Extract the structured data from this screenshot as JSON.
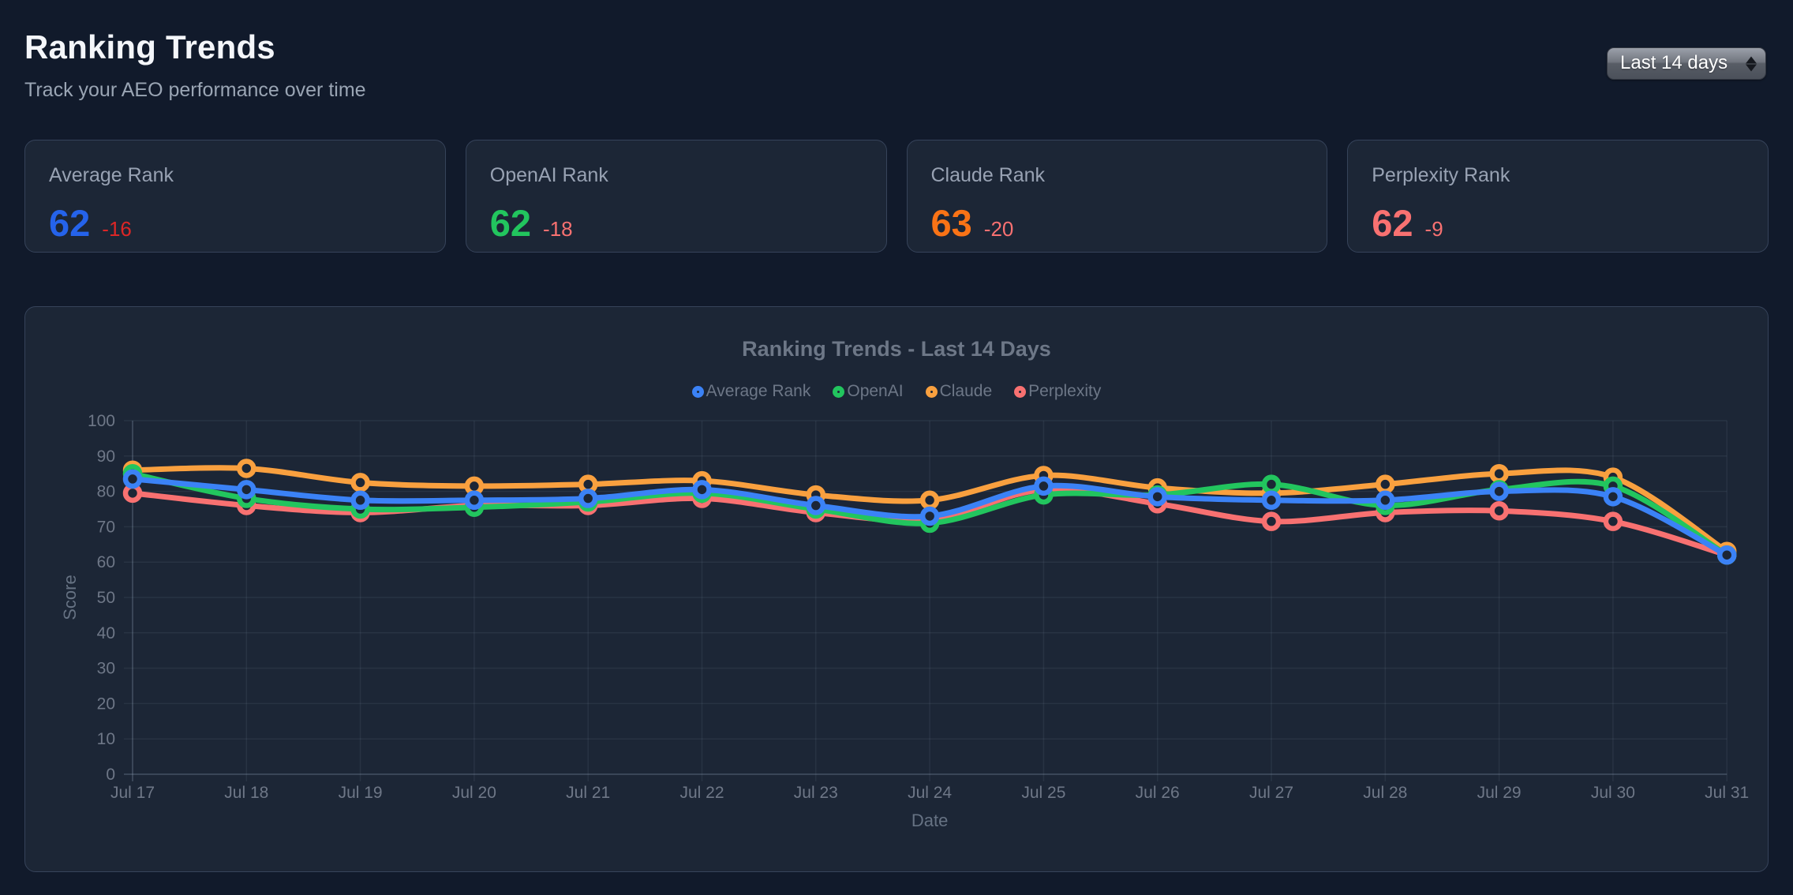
{
  "header": {
    "title": "Ranking Trends",
    "subtitle": "Track your AEO performance over time",
    "range_select": {
      "value": "Last 14 days"
    }
  },
  "stat_cards": [
    {
      "label": "Average Rank",
      "value": "62",
      "delta": "-16",
      "value_color": "#2563eb",
      "delta_color": "#dc2626"
    },
    {
      "label": "OpenAI Rank",
      "value": "62",
      "delta": "-18",
      "value_color": "#22c55e",
      "delta_color": "#f87171"
    },
    {
      "label": "Claude Rank",
      "value": "63",
      "delta": "-20",
      "value_color": "#f97316",
      "delta_color": "#f87171"
    },
    {
      "label": "Perplexity Rank",
      "value": "62",
      "delta": "-9",
      "value_color": "#f87171",
      "delta_color": "#f87171"
    }
  ],
  "chart_data": {
    "type": "line",
    "title": "Ranking Trends - Last 14 Days",
    "xlabel": "Date",
    "ylabel": "Score",
    "ylim": [
      0,
      100
    ],
    "y_tick_step": 10,
    "grid": true,
    "legend_position": "top",
    "categories": [
      "Jul 17",
      "Jul 18",
      "Jul 19",
      "Jul 20",
      "Jul 21",
      "Jul 22",
      "Jul 23",
      "Jul 24",
      "Jul 25",
      "Jul 26",
      "Jul 27",
      "Jul 28",
      "Jul 29",
      "Jul 30",
      "Jul 31"
    ],
    "series": [
      {
        "name": "Average Rank",
        "color": "#3b82f6",
        "values": [
          83.5,
          80.5,
          77.5,
          77.5,
          78,
          80.5,
          76,
          73,
          81.5,
          78.5,
          77.5,
          77.5,
          80,
          78.5,
          62
        ]
      },
      {
        "name": "OpenAI",
        "color": "#22c55e",
        "values": [
          85,
          78,
          75,
          75.5,
          77,
          79.5,
          75,
          71,
          79,
          79,
          82,
          76,
          80.5,
          81.5,
          62
        ]
      },
      {
        "name": "Claude",
        "color": "#f9a03f",
        "values": [
          86,
          86.5,
          82.5,
          81.5,
          82,
          83,
          79,
          77.5,
          84.5,
          81,
          79.5,
          82,
          85,
          84,
          63
        ]
      },
      {
        "name": "Perplexity",
        "color": "#f87171",
        "values": [
          79.5,
          76,
          74,
          76,
          76,
          78,
          74,
          72,
          80.5,
          76.5,
          71.5,
          74,
          74.5,
          71.5,
          62
        ]
      }
    ]
  }
}
